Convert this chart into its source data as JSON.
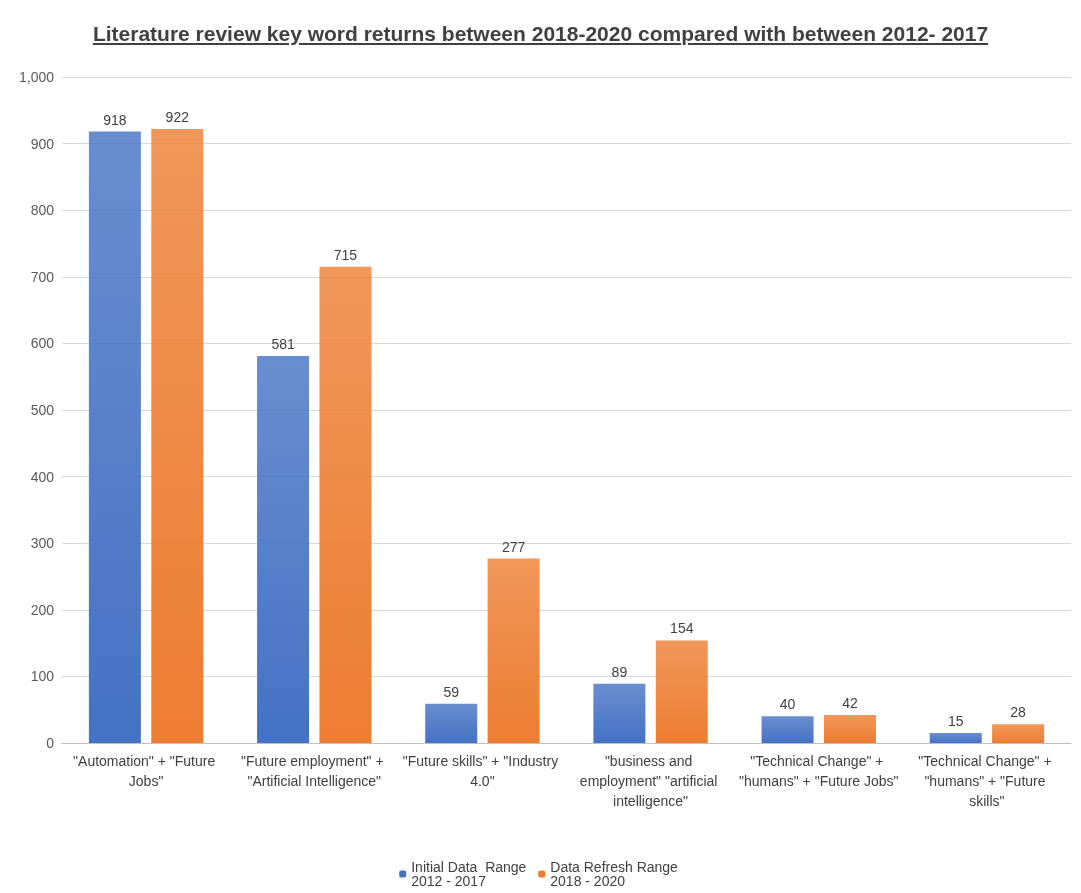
{
  "chart_data": {
    "type": "bar",
    "title": "Literature review key word returns between 2018-2020 compared with between 2012- 2017",
    "categories": [
      "\"Automation\" + \"Future Jobs\"",
      "\"Future employment\" + \"Artificial Intelligence\"",
      "\"Future skills\" + \"Industry 4.0\"",
      "\"business and employment\" \"artificial intelligence\"",
      "\"Technical Change\" + \"humans\" + \"Future Jobs\"",
      "\"Technical Change\" + \"humans\" + \"Future skills\""
    ],
    "series": [
      {
        "name": "Initial Data  Range 2012 - 2017",
        "color": "#4472c4",
        "values": [
          918,
          581,
          59,
          89,
          40,
          15
        ]
      },
      {
        "name": "Data Refresh Range 2018 - 2020",
        "color": "#ed7d31",
        "values": [
          922,
          715,
          277,
          154,
          42,
          28
        ]
      }
    ],
    "ylim": [
      0,
      1000
    ],
    "yticks": [
      0,
      100,
      200,
      300,
      400,
      500,
      600,
      700,
      800,
      900,
      {
        "value": 1000,
        "label": "1,000"
      }
    ],
    "grid": "y",
    "legend": "bottom",
    "data_labels": true
  }
}
